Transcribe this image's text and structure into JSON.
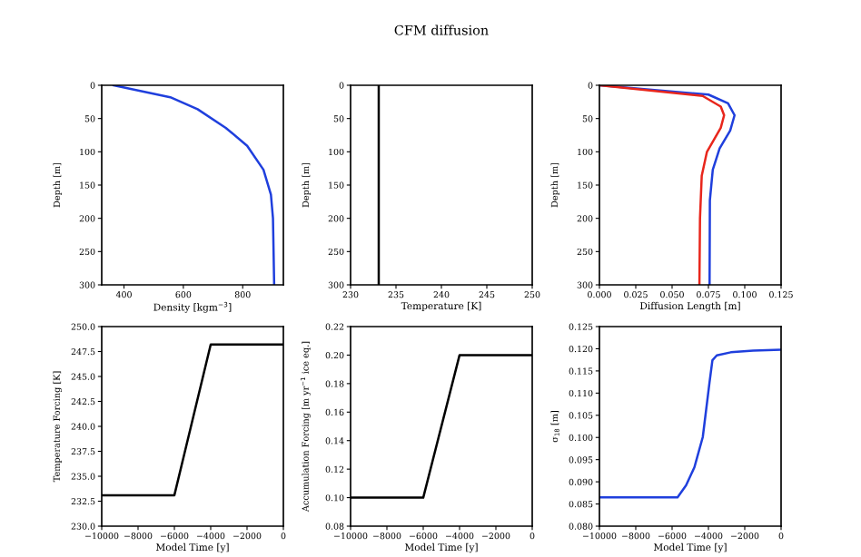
{
  "chart_data": [
    {
      "type": "line",
      "xlabel": "Density [kgm$^{−3}$]",
      "ylabel": "Depth [m]",
      "xlim": [
        325,
        937
      ],
      "xticks": [
        400,
        600,
        800
      ],
      "ylim": [
        300,
        0
      ],
      "yticks": [
        0,
        50,
        100,
        150,
        200,
        250,
        300
      ],
      "grid": false,
      "series": [
        {
          "color": "#1f3fdd",
          "x": [
            365,
            556,
            648,
            743,
            815,
            870,
            895,
            902,
            906
          ],
          "values": [
            0,
            18,
            36,
            64,
            91,
            127,
            164,
            200,
            300
          ]
        }
      ]
    },
    {
      "type": "line",
      "title": "CFM diffusion",
      "xlabel": "Temperature [K]",
      "ylabel": "Depth [m]",
      "xlim": [
        230,
        250
      ],
      "xticks": [
        230,
        235,
        240,
        245,
        250
      ],
      "ylim": [
        300,
        0
      ],
      "yticks": [
        0,
        50,
        100,
        150,
        200,
        250,
        300
      ],
      "grid": false,
      "series": [
        {
          "color": "#000000",
          "x": [
            233.1,
            233.1
          ],
          "values": [
            0,
            300
          ]
        }
      ]
    },
    {
      "type": "line",
      "xlabel": "Diffusion Length [m]",
      "ylabel": "Depth [m]",
      "xlim": [
        0,
        0.125
      ],
      "xticks": [
        {
          "value": 0,
          "label": "0.000"
        },
        0.025,
        {
          "value": 0.05,
          "label": "0.050"
        },
        0.075,
        {
          "value": 0.1,
          "label": "0.100"
        },
        0.125
      ],
      "ylim": [
        300,
        0
      ],
      "yticks": [
        0,
        50,
        100,
        150,
        200,
        250,
        300
      ],
      "grid": false,
      "series": [
        {
          "color": "#1f3fdd",
          "x": [
            0,
            0.075,
            0.0885,
            0.093,
            0.09,
            0.0827,
            0.078,
            0.076,
            0.0758
          ],
          "values": [
            0,
            14,
            27,
            45,
            68,
            95,
            127,
            173,
            300
          ]
        },
        {
          "color": "#e8261c",
          "x": [
            0,
            0.071,
            0.0835,
            0.0858,
            0.0835,
            0.074,
            0.0704,
            0.0692,
            0.0688
          ],
          "values": [
            0,
            16,
            32,
            45,
            64,
            100,
            136,
            200,
            300
          ]
        }
      ]
    },
    {
      "type": "line",
      "xlabel": "Model Time [y]",
      "ylabel": "Temperature Forcing [K]",
      "xlim": [
        -10000,
        0
      ],
      "xticks": [
        {
          "value": -10000,
          "label": "−10000"
        },
        {
          "value": -8000,
          "label": "−8000"
        },
        {
          "value": -6000,
          "label": "−6000"
        },
        {
          "value": -4000,
          "label": "−4000"
        },
        {
          "value": -2000,
          "label": "−2000"
        },
        0
      ],
      "ylim": [
        230,
        250
      ],
      "yticks": [
        {
          "value": 230,
          "label": "230.0"
        },
        232.5,
        {
          "value": 235,
          "label": "235.0"
        },
        237.5,
        {
          "value": 240,
          "label": "240.0"
        },
        242.5,
        {
          "value": 245,
          "label": "245.0"
        },
        247.5,
        {
          "value": 250,
          "label": "250.0"
        }
      ],
      "grid": false,
      "series": [
        {
          "color": "#000000",
          "x": [
            -10000,
            -6000,
            -4000,
            0
          ],
          "values": [
            233.1,
            233.1,
            248.2,
            248.2
          ]
        }
      ]
    },
    {
      "type": "line",
      "xlabel": "Model Time [y]",
      "ylabel": "Accumulation Forcing [m yr$^{−1}$ ice eq.]",
      "xlim": [
        -10000,
        0
      ],
      "xticks": [
        {
          "value": -10000,
          "label": "−10000"
        },
        {
          "value": -8000,
          "label": "−8000"
        },
        {
          "value": -6000,
          "label": "−6000"
        },
        {
          "value": -4000,
          "label": "−4000"
        },
        {
          "value": -2000,
          "label": "−2000"
        },
        0
      ],
      "ylim": [
        0.08,
        0.22
      ],
      "yticks": [
        0.08,
        {
          "value": 0.1,
          "label": "0.10"
        },
        0.12,
        0.14,
        0.16,
        0.18,
        {
          "value": 0.2,
          "label": "0.20"
        },
        0.22
      ],
      "grid": false,
      "series": [
        {
          "color": "#000000",
          "x": [
            -10000,
            -6000,
            -4000,
            0
          ],
          "values": [
            0.1,
            0.1,
            0.2,
            0.2
          ]
        }
      ]
    },
    {
      "type": "line",
      "xlabel": "Model Time [y]",
      "ylabel": "σ$_{18}$ [m]",
      "xlim": [
        -10000,
        0
      ],
      "xticks": [
        {
          "value": -10000,
          "label": "−10000"
        },
        {
          "value": -8000,
          "label": "−8000"
        },
        {
          "value": -6000,
          "label": "−6000"
        },
        {
          "value": -4000,
          "label": "−4000"
        },
        {
          "value": -2000,
          "label": "−2000"
        },
        0
      ],
      "ylim": [
        0.08,
        0.125
      ],
      "yticks": [
        {
          "value": 0.08,
          "label": "0.080"
        },
        0.085,
        {
          "value": 0.09,
          "label": "0.090"
        },
        0.095,
        {
          "value": 0.1,
          "label": "0.100"
        },
        0.105,
        {
          "value": 0.11,
          "label": "0.110"
        },
        0.115,
        {
          "value": 0.12,
          "label": "0.120"
        },
        0.125
      ],
      "grid": false,
      "series": [
        {
          "color": "#1f3fdd",
          "x": [
            -10000,
            -5700,
            -5230,
            -4770,
            -4310,
            -3940,
            -3780,
            -3540,
            -2770,
            -1540,
            0
          ],
          "values": [
            0.0865,
            0.0865,
            0.0892,
            0.0933,
            0.1001,
            0.1124,
            0.1174,
            0.1185,
            0.1192,
            0.1196,
            0.1198
          ]
        }
      ]
    }
  ]
}
